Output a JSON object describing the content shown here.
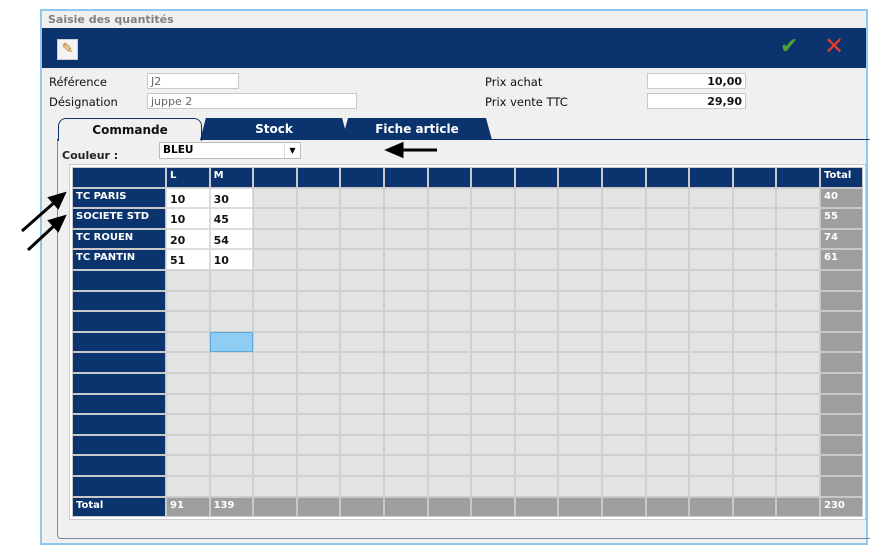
{
  "window": {
    "title": "Saisie des quantités"
  },
  "toolbar": {
    "edit_icon": "pencil-icon",
    "validate_icon": "checkmark-icon",
    "cancel_icon": "close-icon",
    "validate_color": "#4ca234",
    "cancel_color": "#e53b2a"
  },
  "form": {
    "reference_label": "Référence",
    "reference_value": "J2",
    "designation_label": "Désignation",
    "designation_value": "juppe 2",
    "prix_achat_label": "Prix achat",
    "prix_achat_value": "10,00",
    "prix_vente_label": "Prix vente TTC",
    "prix_vente_value": "29,90"
  },
  "tabs": [
    {
      "label": "Commande",
      "active": true
    },
    {
      "label": "Stock",
      "active": false
    },
    {
      "label": "Fiche article",
      "active": false
    }
  ],
  "couleur": {
    "label": "Couleur :",
    "value": "BLEU"
  },
  "grid": {
    "columns": [
      "L",
      "M",
      "",
      "",
      "",
      "",
      "",
      "",
      "",
      "",
      "",
      "",
      "",
      "",
      ""
    ],
    "total_header": "Total",
    "rows": [
      {
        "label": "TC PARIS",
        "values": [
          "10",
          "30"
        ],
        "total": "40"
      },
      {
        "label": "SOCIETE STD",
        "values": [
          "10",
          "45"
        ],
        "total": "55"
      },
      {
        "label": "TC ROUEN",
        "values": [
          "20",
          "54"
        ],
        "total": "74"
      },
      {
        "label": "TC PANTIN",
        "values": [
          "51",
          "10"
        ],
        "total": "61"
      }
    ],
    "empty_rows": 11,
    "total_row": {
      "label": "Total",
      "values": [
        "91",
        "139"
      ],
      "total": "230"
    },
    "selected_cell": {
      "row": 7,
      "column": "M"
    }
  },
  "colors": {
    "navy": "#0b336e",
    "selection": "#8fcdf3"
  }
}
